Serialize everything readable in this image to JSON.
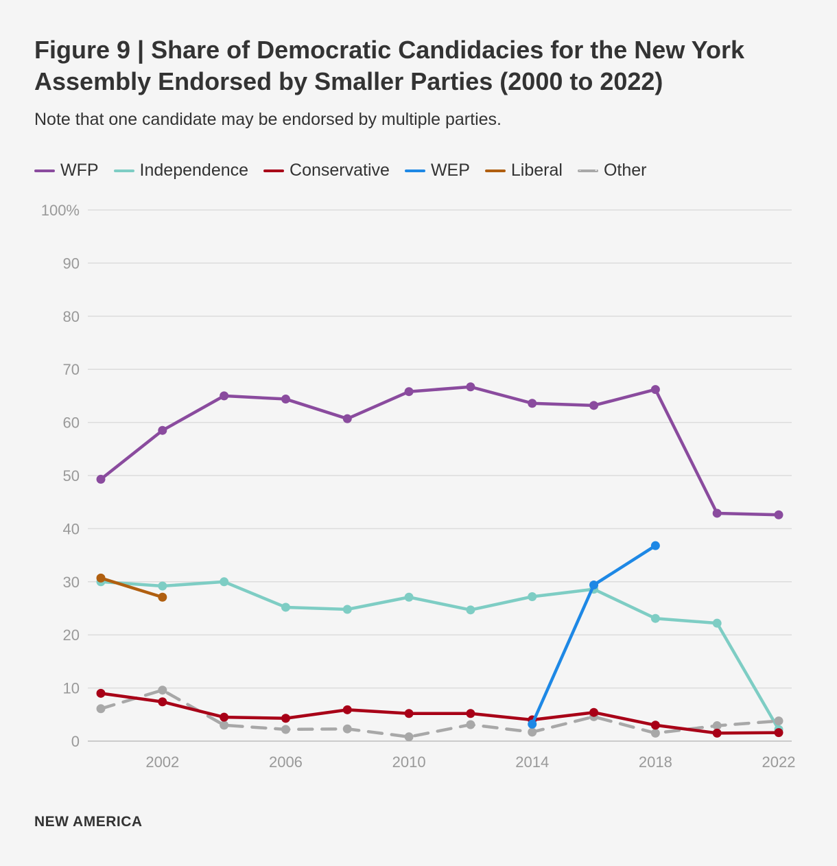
{
  "title": "Figure 9 | Share of Democratic Candidacies for the New York Assembly Endorsed by Smaller Parties (2000 to 2022)",
  "subtitle": "Note that one candidate may be endorsed by multiple parties.",
  "footer": "NEW AMERICA",
  "legend": [
    {
      "name": "WFP",
      "color": "#8a4b9e",
      "dashed": false
    },
    {
      "name": "Independence",
      "color": "#7ecdc4",
      "dashed": false
    },
    {
      "name": "Conservative",
      "color": "#a80017",
      "dashed": false
    },
    {
      "name": "WEP",
      "color": "#1e88e5",
      "dashed": false
    },
    {
      "name": "Liberal",
      "color": "#b05f10",
      "dashed": false
    },
    {
      "name": "Other",
      "color": "#a8a8a8",
      "dashed": true
    }
  ],
  "chart_data": {
    "type": "line",
    "title": "Figure 9 | Share of Democratic Candidacies for the New York Assembly Endorsed by Smaller Parties (2000 to 2022)",
    "xlabel": "",
    "ylabel": "",
    "x": [
      2000,
      2002,
      2004,
      2006,
      2008,
      2010,
      2012,
      2014,
      2016,
      2018,
      2020,
      2022
    ],
    "xlim": [
      2000,
      2022
    ],
    "ylim": [
      0,
      100
    ],
    "x_ticks": [
      "2002",
      "2006",
      "2010",
      "2014",
      "2018",
      "2022"
    ],
    "y_ticks": [
      "100%",
      "90",
      "80",
      "70",
      "60",
      "50",
      "40",
      "30",
      "20",
      "10",
      "0"
    ],
    "grid": true,
    "legend_position": "top-left",
    "series": [
      {
        "name": "Independence",
        "color": "#7ecdc4",
        "dashed": false,
        "points": [
          [
            2000,
            30.0
          ],
          [
            2002,
            29.2
          ],
          [
            2004,
            30.0
          ],
          [
            2006,
            25.2
          ],
          [
            2008,
            24.8
          ],
          [
            2010,
            27.1
          ],
          [
            2012,
            24.7
          ],
          [
            2014,
            27.2
          ],
          [
            2016,
            28.6
          ],
          [
            2018,
            23.1
          ],
          [
            2020,
            22.2
          ],
          [
            2022,
            2.2
          ]
        ]
      },
      {
        "name": "Other",
        "color": "#a8a8a8",
        "dashed": true,
        "points": [
          [
            2000,
            6.1
          ],
          [
            2002,
            9.6
          ],
          [
            2004,
            3.0
          ],
          [
            2006,
            2.2
          ],
          [
            2008,
            2.3
          ],
          [
            2010,
            0.8
          ],
          [
            2012,
            3.1
          ],
          [
            2014,
            1.7
          ],
          [
            2016,
            4.6
          ],
          [
            2018,
            1.5
          ],
          [
            2020,
            2.9
          ],
          [
            2022,
            3.8
          ]
        ]
      },
      {
        "name": "Conservative",
        "color": "#a80017",
        "dashed": false,
        "points": [
          [
            2000,
            9.0
          ],
          [
            2002,
            7.4
          ],
          [
            2004,
            4.5
          ],
          [
            2006,
            4.3
          ],
          [
            2008,
            5.9
          ],
          [
            2010,
            5.2
          ],
          [
            2012,
            5.2
          ],
          [
            2014,
            4.0
          ],
          [
            2016,
            5.4
          ],
          [
            2018,
            3.0
          ],
          [
            2020,
            1.5
          ],
          [
            2022,
            1.6
          ]
        ]
      },
      {
        "name": "Liberal",
        "color": "#b05f10",
        "dashed": false,
        "points": [
          [
            2000,
            30.7
          ],
          [
            2002,
            27.1
          ]
        ]
      },
      {
        "name": "WEP",
        "color": "#1e88e5",
        "dashed": false,
        "points": [
          [
            2014,
            3.2
          ],
          [
            2016,
            29.4
          ],
          [
            2018,
            36.8
          ]
        ]
      },
      {
        "name": "WFP",
        "color": "#8a4b9e",
        "dashed": false,
        "points": [
          [
            2000,
            49.3
          ],
          [
            2002,
            58.5
          ],
          [
            2004,
            65.0
          ],
          [
            2006,
            64.4
          ],
          [
            2008,
            60.7
          ],
          [
            2010,
            65.8
          ],
          [
            2012,
            66.7
          ],
          [
            2014,
            63.6
          ],
          [
            2016,
            63.2
          ],
          [
            2018,
            66.2
          ],
          [
            2020,
            42.9
          ],
          [
            2022,
            42.6
          ]
        ]
      }
    ]
  }
}
